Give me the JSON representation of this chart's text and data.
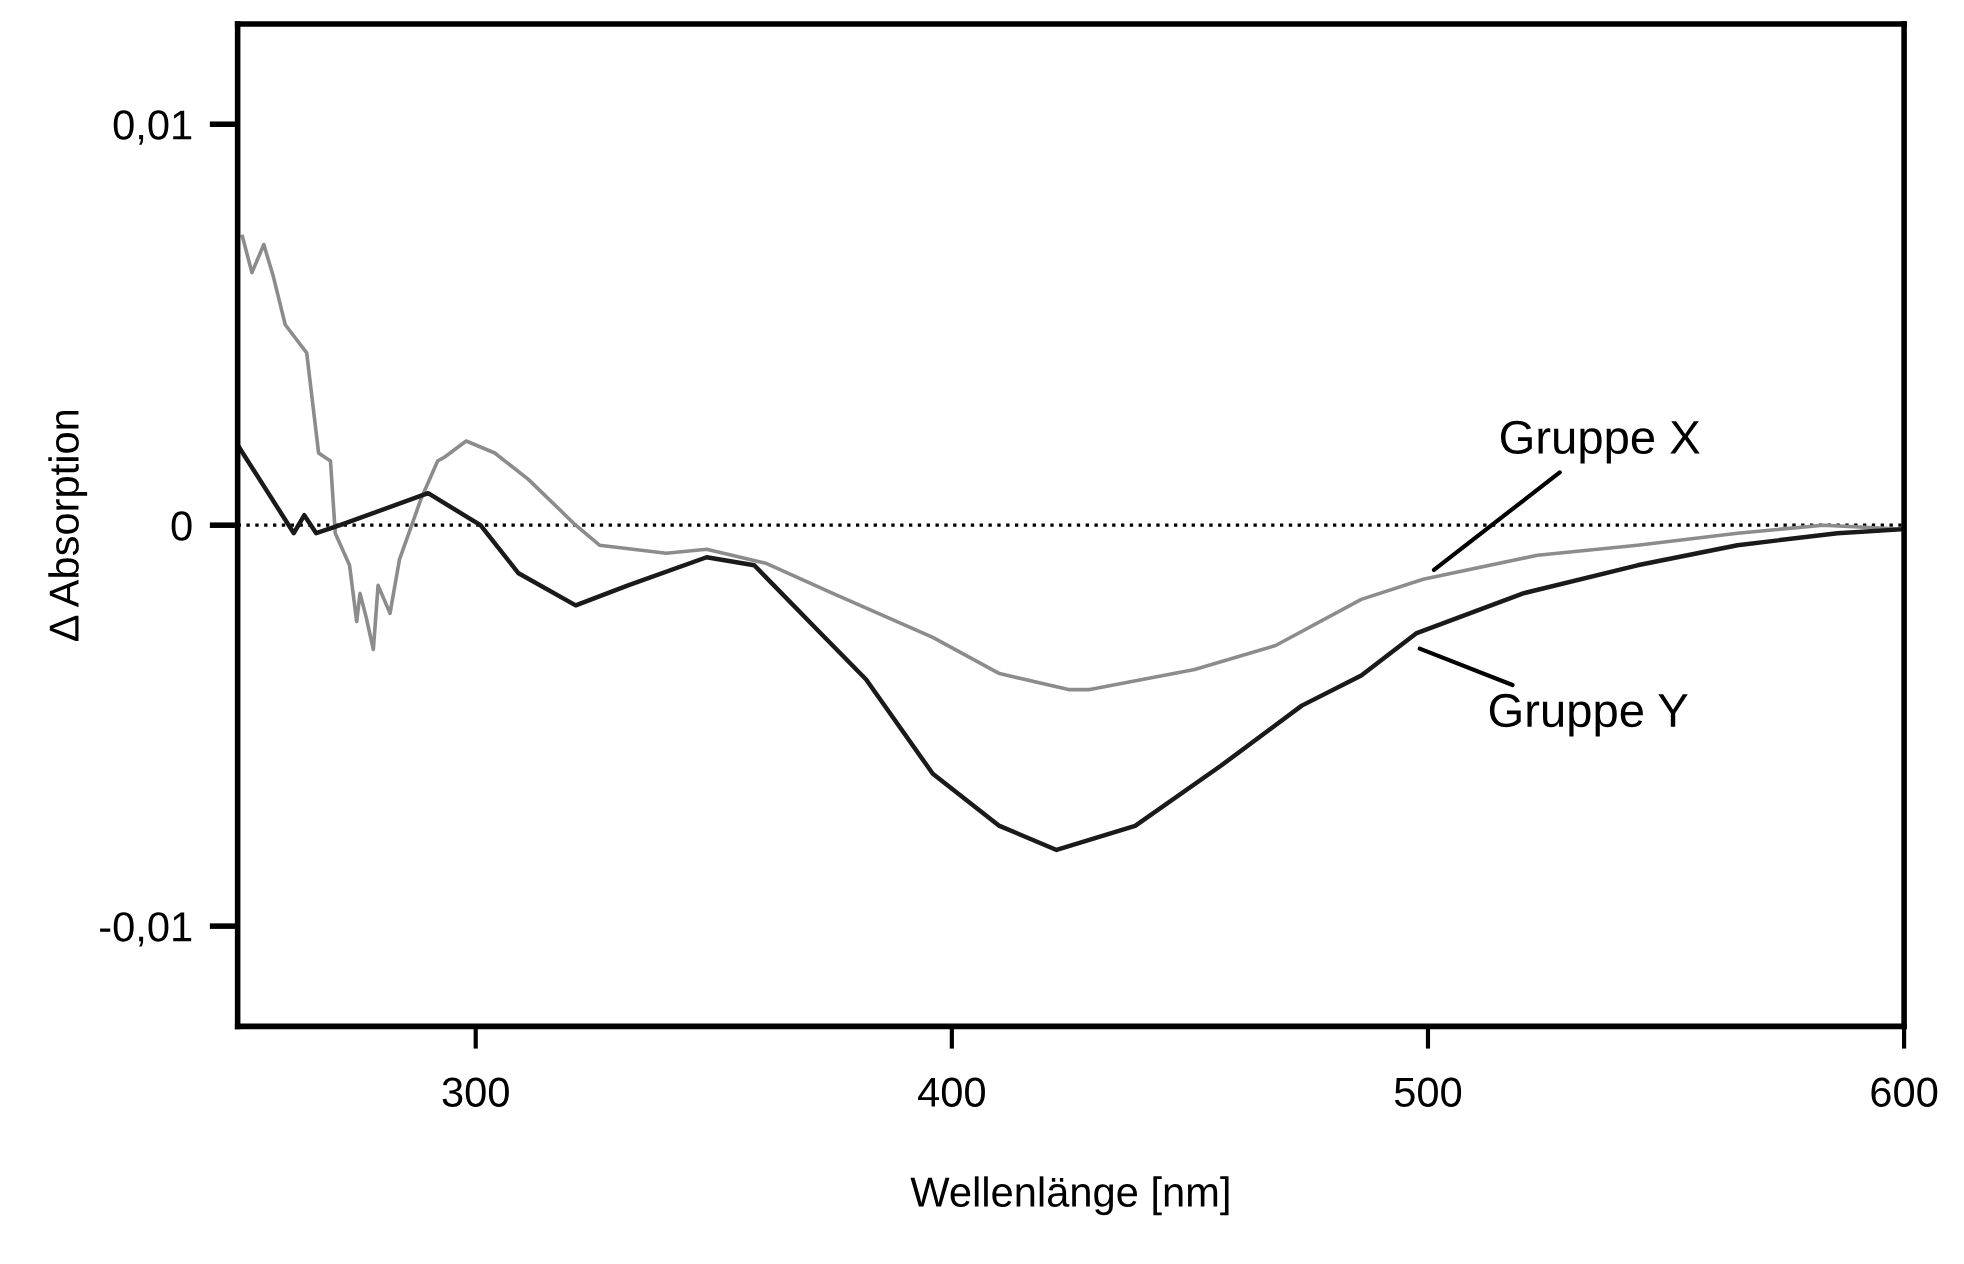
{
  "chart_data": {
    "type": "line",
    "xlabel": "Wellenlänge [nm]",
    "ylabel": "Δ Absorption",
    "xlim": [
      250,
      600
    ],
    "xticks": [
      300,
      400,
      500,
      600
    ],
    "ylim": [
      -0.0125,
      0.0125
    ],
    "yticks": [
      {
        "value": 0.01,
        "label": "0,01"
      },
      {
        "value": 0,
        "label": "0"
      },
      {
        "value": -0.01,
        "label": "-0,01"
      }
    ],
    "grid": false,
    "legend": false,
    "line_style": "solid",
    "marker": "none",
    "ref_lines": [
      {
        "axis": "y",
        "value": 0,
        "line_style": "dotted",
        "color": "#000000"
      }
    ],
    "series": [
      {
        "name": "Gruppe X",
        "color": "#8c8c8c",
        "x": [
          251,
          253,
          255.5,
          257.5,
          260,
          264.5,
          267,
          269.5,
          270.5,
          273.5,
          275,
          275.7,
          277,
          278.5,
          279.5,
          282,
          284,
          288.5,
          292,
          293.5,
          298,
          304,
          311,
          321,
          326,
          340,
          348.5,
          361,
          375,
          396,
          410,
          424.5,
          429,
          451,
          468,
          486,
          499,
          523,
          544,
          565,
          583,
          600
        ],
        "values": [
          0.0072,
          0.0063,
          0.007,
          0.0062,
          0.005,
          0.0043,
          0.0018,
          0.0016,
          -0.0002,
          -0.001,
          -0.0024,
          -0.0017,
          -0.0023,
          -0.0031,
          -0.0015,
          -0.0022,
          -0.00085,
          0.00065,
          0.0016,
          0.0017,
          0.0021,
          0.0018,
          0.00115,
          0,
          -0.0005,
          -0.0007,
          -0.0006,
          -0.00095,
          -0.0017,
          -0.0028,
          -0.0037,
          -0.0041,
          -0.0041,
          -0.0036,
          -0.003,
          -0.00185,
          -0.00135,
          -0.00075,
          -0.0005,
          -0.0002,
          0,
          -0.0001
        ]
      },
      {
        "name": "Gruppe Y",
        "color": "#1a1a1a",
        "x": [
          250,
          261.8,
          264,
          266.5,
          271.5,
          290,
          301,
          309,
          321,
          332,
          348.5,
          358.5,
          372.5,
          382,
          396,
          410,
          422,
          438.5,
          456.5,
          473.5,
          486,
          497.5,
          520,
          544,
          565,
          586,
          600
        ],
        "values": [
          0.002,
          -0.0002,
          0.00025,
          -0.0002,
          0,
          0.0008,
          0,
          -0.0012,
          -0.002,
          -0.0015,
          -0.0008,
          -0.001,
          -0.0027,
          -0.00385,
          -0.0062,
          -0.0075,
          -0.0081,
          -0.0075,
          -0.006,
          -0.0045,
          -0.00375,
          -0.0027,
          -0.0017,
          -0.001,
          -0.0005,
          -0.0002,
          -0.0001
        ]
      }
    ]
  }
}
